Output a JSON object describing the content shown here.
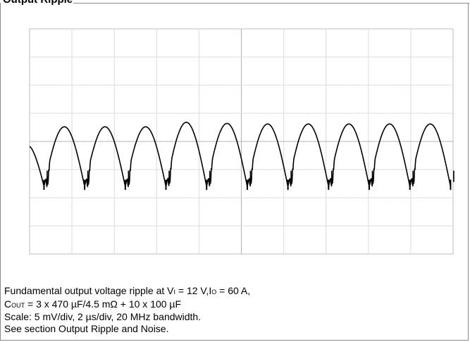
{
  "title": "Output Ripple",
  "caption": {
    "line1": {
      "pre": "Fundamental output voltage ripple at V",
      "vsub": "I",
      "mid": " = 12 V,I",
      "isub": "O",
      "post": " = 60 A,"
    },
    "line2": {
      "pre": "C",
      "sub": "OUT",
      "post": " = 3 x 470 µF/4.5 mΩ + 10 x 100 µF"
    },
    "line3": "Scale: 5 mV/div, 2 µs/div, 20 MHz bandwidth.",
    "line4": "See section Output Ripple and Noise."
  },
  "chart_data": {
    "type": "line",
    "scale": {
      "volts_per_div": "5 mV/div",
      "time_per_div": "2 µs/div",
      "bandwidth": "20 MHz"
    },
    "divisions": {
      "x": 10,
      "y": 8
    },
    "grid": true,
    "series": [
      {
        "x_unit": "µs",
        "y_unit": "mV",
        "ripple_period_us": 1.92,
        "dip_times_us": [
          0.68,
          2.6,
          4.52,
          6.44,
          8.36,
          10.28,
          12.2,
          14.12,
          16.04,
          17.96,
          19.88
        ],
        "peak_mv": [
          -0.9,
          2.6,
          2.6,
          2.6,
          3.4,
          3.2,
          3.1
        ],
        "trough_mv": -8.0,
        "spike_mv": -6.0
      }
    ]
  }
}
